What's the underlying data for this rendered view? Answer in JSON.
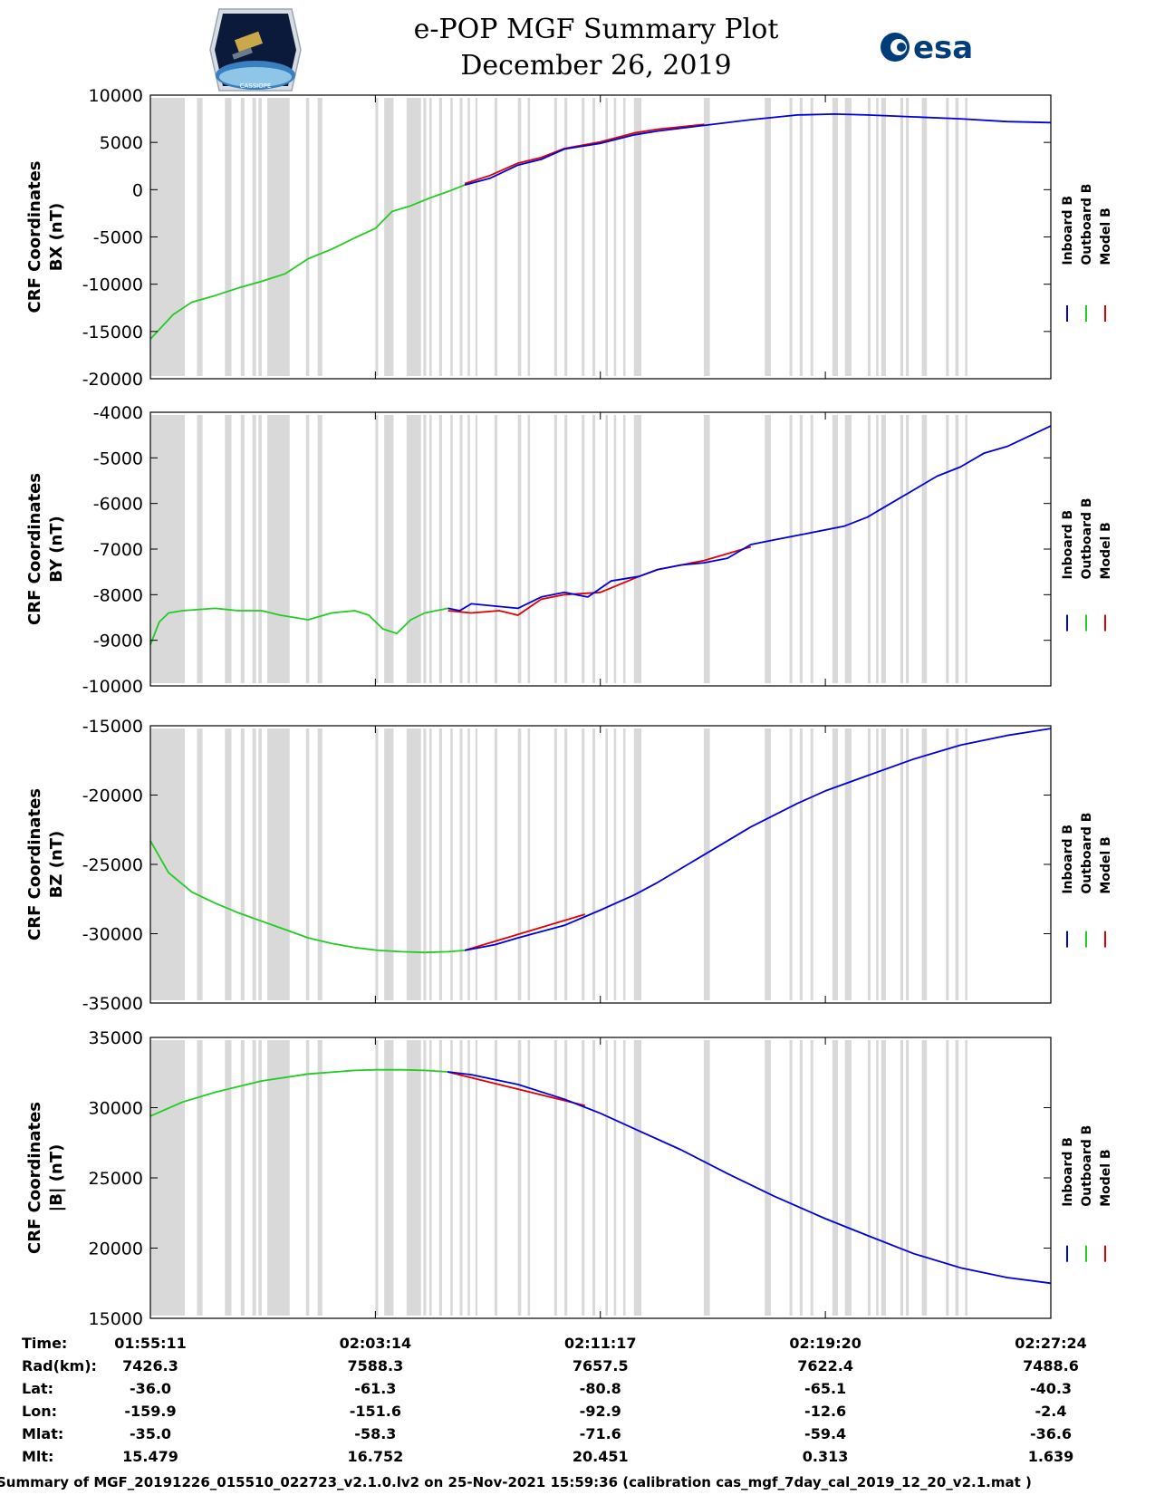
{
  "header": {
    "title_line1": "e-POP MGF Summary Plot",
    "title_line2": "December 26, 2019",
    "left_logo": "cassiope-mission-logo",
    "left_logo_text": "CASSIOPE",
    "right_logo": "esa-logo",
    "right_logo_text": "esa"
  },
  "colors": {
    "inboard": "#0000dd",
    "outboard": "#22cc22",
    "model": "#dd0000",
    "gap_shading": "#d9d9d9"
  },
  "legend": {
    "labels": [
      "Inboard B",
      "Outboard B",
      "Model B"
    ]
  },
  "time_axis": {
    "start_seconds": 6911,
    "end_seconds": 8844,
    "ticks_seconds": [
      6911,
      7394,
      7877,
      8360,
      8844
    ]
  },
  "data_gaps_seconds": [
    [
      6911,
      6985
    ],
    [
      7011,
      7023
    ],
    [
      7071,
      7085
    ],
    [
      7105,
      7113
    ],
    [
      7130,
      7138
    ],
    [
      7143,
      7150
    ],
    [
      7162,
      7210
    ],
    [
      7245,
      7252
    ],
    [
      7270,
      7280
    ],
    [
      7394,
      7400
    ],
    [
      7413,
      7433
    ],
    [
      7461,
      7492
    ],
    [
      7497,
      7503
    ],
    [
      7510,
      7515
    ],
    [
      7531,
      7537
    ],
    [
      7555,
      7560
    ],
    [
      7575,
      7581
    ],
    [
      7592,
      7597
    ],
    [
      7609,
      7613
    ],
    [
      7650,
      7656
    ],
    [
      7700,
      7707
    ],
    [
      7721,
      7726
    ],
    [
      7778,
      7784
    ],
    [
      7800,
      7806
    ],
    [
      7837,
      7843
    ],
    [
      7860,
      7866
    ],
    [
      7888,
      7893
    ],
    [
      7906,
      7911
    ],
    [
      7926,
      7931
    ],
    [
      7949,
      7965
    ],
    [
      8099,
      8112
    ],
    [
      8230,
      8243
    ],
    [
      8283,
      8289
    ],
    [
      8305,
      8311
    ],
    [
      8328,
      8334
    ],
    [
      8375,
      8387
    ],
    [
      8402,
      8416
    ],
    [
      8451,
      8457
    ],
    [
      8469,
      8474
    ],
    [
      8480,
      8490
    ],
    [
      8521,
      8527
    ],
    [
      8533,
      8539
    ],
    [
      8567,
      8578
    ],
    [
      8619,
      8625
    ],
    [
      8639,
      8646
    ],
    [
      8660,
      8665
    ]
  ],
  "chart_data": [
    {
      "type": "line",
      "name": "BX",
      "ylabel_line1": "CRF Coordinates",
      "ylabel_line2": "BX (nT)",
      "ylim": [
        -20000,
        10000
      ],
      "yticks": [
        -20000,
        -15000,
        -10000,
        -5000,
        0,
        5000,
        10000
      ],
      "ytick_labels": [
        "-20000",
        "-15000",
        "-10000",
        "-5000",
        "0",
        "5000",
        "10000"
      ],
      "series": [
        {
          "name": "Outboard B",
          "x": [
            6911,
            6960,
            7000,
            7050,
            7100,
            7150,
            7200,
            7250,
            7300,
            7350,
            7394,
            7430,
            7470,
            7510,
            7550,
            7586
          ],
          "values": [
            -15800,
            -13200,
            -11900,
            -11200,
            -10400,
            -9700,
            -8900,
            -7300,
            -6300,
            -5100,
            -4100,
            -2300,
            -1700,
            -900,
            -200,
            500
          ]
        },
        {
          "name": "Inboard B",
          "x": [
            7586,
            7640,
            7700,
            7750,
            7800,
            7877,
            7950,
            8000,
            8100,
            8200,
            8300,
            8380,
            8450,
            8550,
            8650,
            8750,
            8844
          ],
          "values": [
            500,
            1200,
            2600,
            3200,
            4300,
            4900,
            5800,
            6200,
            6800,
            7400,
            7900,
            8000,
            7900,
            7700,
            7500,
            7200,
            7100
          ]
        },
        {
          "name": "Model B",
          "x": [
            7586,
            7640,
            7700,
            7750,
            7800,
            7877,
            7950,
            8000,
            8100
          ],
          "values": [
            650,
            1500,
            2800,
            3400,
            4350,
            5050,
            6000,
            6400,
            6900
          ]
        }
      ]
    },
    {
      "type": "line",
      "name": "BY",
      "ylabel_line1": "CRF Coordinates",
      "ylabel_line2": "BY (nT)",
      "ylim": [
        -10000,
        -4000
      ],
      "yticks": [
        -10000,
        -9000,
        -8000,
        -7000,
        -6000,
        -5000,
        -4000
      ],
      "ytick_labels": [
        "-10000",
        "-9000",
        "-8000",
        "-7000",
        "-6000",
        "-5000",
        "-4000"
      ],
      "series": [
        {
          "name": "Outboard B",
          "x": [
            6911,
            6930,
            6950,
            6980,
            7050,
            7100,
            7150,
            7190,
            7220,
            7250,
            7300,
            7350,
            7380,
            7410,
            7440,
            7470,
            7500,
            7550
          ],
          "values": [
            -9100,
            -8600,
            -8400,
            -8350,
            -8300,
            -8350,
            -8350,
            -8450,
            -8500,
            -8550,
            -8400,
            -8350,
            -8450,
            -8750,
            -8850,
            -8550,
            -8400,
            -8300
          ]
        },
        {
          "name": "Inboard B",
          "x": [
            7550,
            7575,
            7600,
            7650,
            7700,
            7750,
            7800,
            7850,
            7900,
            7960,
            8000,
            8050,
            8100,
            8150,
            8200,
            8250,
            8300,
            8400,
            8450,
            8500,
            8550,
            8600,
            8650,
            8700,
            8750,
            8844
          ],
          "values": [
            -8300,
            -8350,
            -8200,
            -8250,
            -8300,
            -8050,
            -7950,
            -8050,
            -7700,
            -7600,
            -7450,
            -7350,
            -7300,
            -7200,
            -6900,
            -6800,
            -6700,
            -6500,
            -6300,
            -6000,
            -5700,
            -5400,
            -5200,
            -4900,
            -4750,
            -4300
          ]
        },
        {
          "name": "Model B",
          "x": [
            7550,
            7600,
            7660,
            7700,
            7750,
            7800,
            7877,
            7960,
            8000,
            8100,
            8200
          ],
          "values": [
            -8350,
            -8400,
            -8350,
            -8450,
            -8100,
            -8000,
            -7950,
            -7600,
            -7450,
            -7250,
            -6950
          ]
        }
      ]
    },
    {
      "type": "line",
      "name": "BZ",
      "ylabel_line1": "CRF Coordinates",
      "ylabel_line2": "BZ (nT)",
      "ylim": [
        -35000,
        -15000
      ],
      "yticks": [
        -35000,
        -30000,
        -25000,
        -20000,
        -15000
      ],
      "ytick_labels": [
        "-35000",
        "-30000",
        "-25000",
        "-20000",
        "-15000"
      ],
      "series": [
        {
          "name": "Outboard B",
          "x": [
            6911,
            6950,
            7000,
            7050,
            7100,
            7150,
            7200,
            7250,
            7300,
            7350,
            7400,
            7450,
            7500,
            7550,
            7586
          ],
          "values": [
            -23300,
            -25600,
            -27000,
            -27800,
            -28500,
            -29100,
            -29700,
            -30300,
            -30700,
            -31000,
            -31200,
            -31300,
            -31350,
            -31300,
            -31200
          ]
        },
        {
          "name": "Inboard B",
          "x": [
            7586,
            7650,
            7700,
            7800,
            7877,
            7950,
            8000,
            8100,
            8200,
            8300,
            8360,
            8450,
            8550,
            8650,
            8750,
            8844
          ],
          "values": [
            -31200,
            -30800,
            -30300,
            -29400,
            -28300,
            -27200,
            -26300,
            -24300,
            -22300,
            -20600,
            -19700,
            -18600,
            -17400,
            -16400,
            -15700,
            -15200
          ]
        },
        {
          "name": "Model B",
          "x": [
            7586,
            7844
          ],
          "values": [
            -31200,
            -28600
          ]
        }
      ]
    },
    {
      "type": "line",
      "name": "|B|",
      "ylabel_line1": "CRF Coordinates",
      "ylabel_line2": "|B| (nT)",
      "ylim": [
        15000,
        35000
      ],
      "yticks": [
        15000,
        20000,
        25000,
        30000,
        35000
      ],
      "ytick_labels": [
        "15000",
        "20000",
        "25000",
        "30000",
        "35000"
      ],
      "series": [
        {
          "name": "Outboard B",
          "x": [
            6911,
            6980,
            7050,
            7150,
            7250,
            7350,
            7394,
            7450,
            7500,
            7549
          ],
          "values": [
            29400,
            30400,
            31100,
            31900,
            32400,
            32650,
            32700,
            32700,
            32650,
            32550
          ]
        },
        {
          "name": "Inboard B",
          "x": [
            7549,
            7600,
            7700,
            7800,
            7877,
            7950,
            8050,
            8150,
            8250,
            8360,
            8450,
            8550,
            8650,
            8750,
            8844
          ],
          "values": [
            32550,
            32350,
            31650,
            30600,
            29600,
            28500,
            27000,
            25300,
            23700,
            22100,
            20900,
            19600,
            18600,
            17900,
            17500
          ]
        },
        {
          "name": "Model B",
          "x": [
            7549,
            7844
          ],
          "values": [
            32550,
            30150
          ]
        }
      ]
    }
  ],
  "ephemeris": {
    "row_labels": [
      "Time:",
      "Rad(km):",
      "Lat:",
      "Lon:",
      "Mlat:",
      "Mlt:"
    ],
    "columns": [
      {
        "Time": "01:55:11",
        "Rad": "7426.3",
        "Lat": "-36.0",
        "Lon": "-159.9",
        "Mlat": "-35.0",
        "Mlt": "15.479"
      },
      {
        "Time": "02:03:14",
        "Rad": "7588.3",
        "Lat": "-61.3",
        "Lon": "-151.6",
        "Mlat": "-58.3",
        "Mlt": "16.752"
      },
      {
        "Time": "02:11:17",
        "Rad": "7657.5",
        "Lat": "-80.8",
        "Lon": "-92.9",
        "Mlat": "-71.6",
        "Mlt": "20.451"
      },
      {
        "Time": "02:19:20",
        "Rad": "7622.4",
        "Lat": "-65.1",
        "Lon": "-12.6",
        "Mlat": "-59.4",
        "Mlt": "0.313"
      },
      {
        "Time": "02:27:24",
        "Rad": "7488.6",
        "Lat": "-40.3",
        "Lon": "-2.4",
        "Mlat": "-36.6",
        "Mlt": "1.639"
      }
    ]
  },
  "footer": {
    "text": "Summary of MGF_20191226_015510_022723_v2.1.0.lv2 on 25-Nov-2021 15:59:36 (calibration cas_mgf_7day_cal_2019_12_20_v2.1.mat )"
  }
}
